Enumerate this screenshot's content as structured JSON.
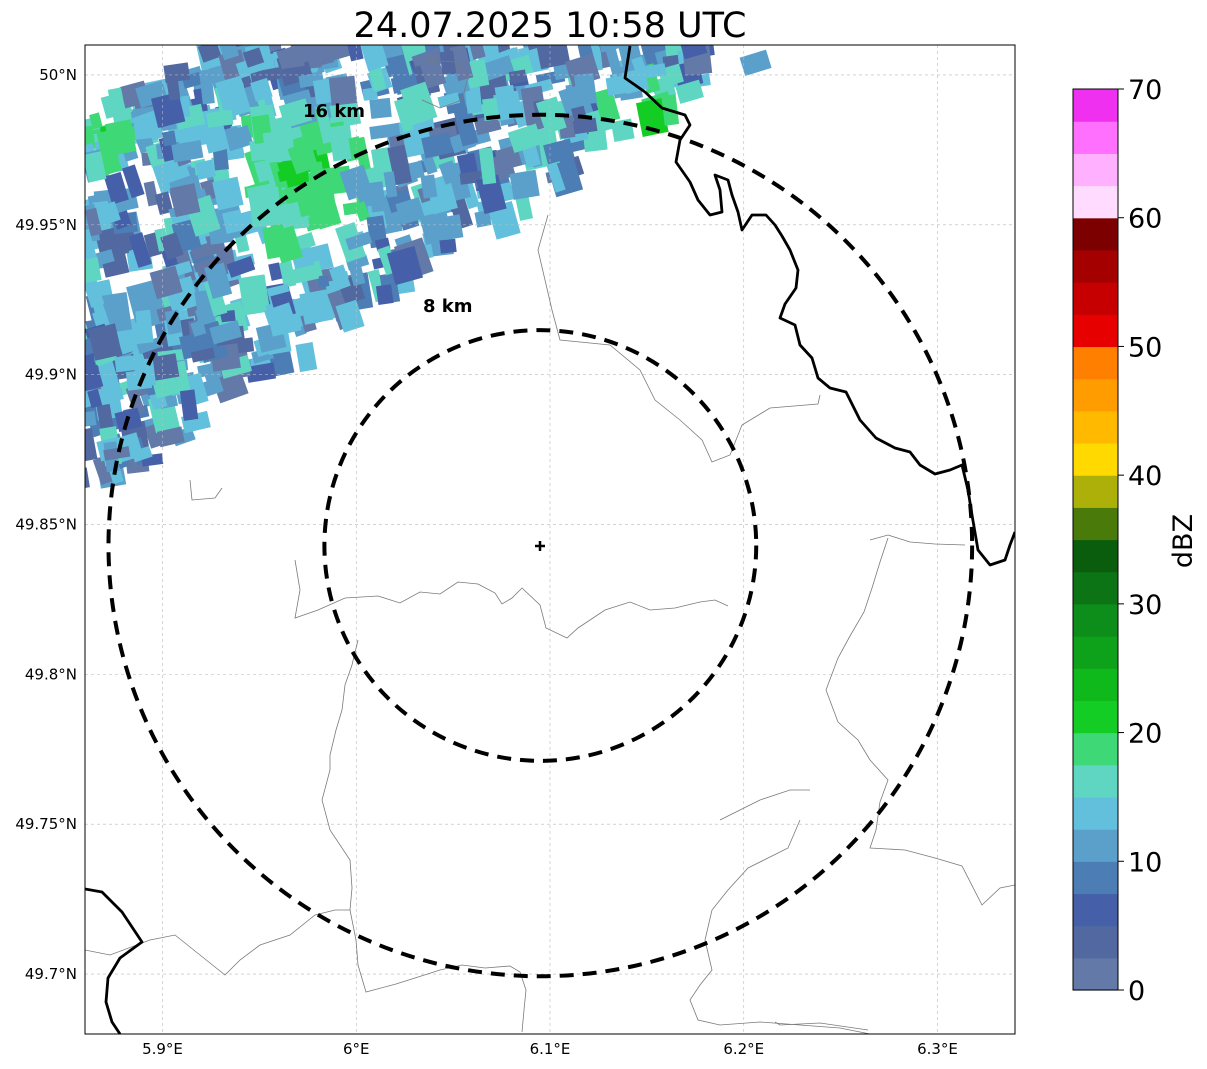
{
  "title": "24.07.2025 10:58 UTC",
  "map": {
    "x_ticks": [
      {
        "value": 5.9,
        "label": "5.9°E"
      },
      {
        "value": 6.0,
        "label": "6°E"
      },
      {
        "value": 6.1,
        "label": "6.1°E"
      },
      {
        "value": 6.2,
        "label": "6.2°E"
      },
      {
        "value": 6.3,
        "label": "6.3°E"
      }
    ],
    "y_ticks": [
      {
        "value": 50.0,
        "label": "50°N"
      },
      {
        "value": 49.95,
        "label": "49.95°N"
      },
      {
        "value": 49.9,
        "label": "49.9°N"
      },
      {
        "value": 49.85,
        "label": "49.85°N"
      },
      {
        "value": 49.8,
        "label": "49.8°N"
      },
      {
        "value": 49.75,
        "label": "49.75°N"
      },
      {
        "value": 49.7,
        "label": "49.7°N"
      }
    ],
    "lon_range": [
      5.86,
      6.34
    ],
    "lat_range": [
      49.68,
      50.01
    ],
    "radar_center": {
      "lon": 6.095,
      "lat": 49.843
    },
    "range_rings": [
      {
        "radius_km": 8,
        "label": "8 km"
      },
      {
        "radius_km": 16,
        "label": "16 km"
      }
    ],
    "grid": true
  },
  "colorbar": {
    "label": "dBZ",
    "min": 0,
    "max": 70,
    "ticks": [
      {
        "value": 0,
        "label": "0"
      },
      {
        "value": 10,
        "label": "10"
      },
      {
        "value": 20,
        "label": "20"
      },
      {
        "value": 30,
        "label": "30"
      },
      {
        "value": 40,
        "label": "40"
      },
      {
        "value": 50,
        "label": "50"
      },
      {
        "value": 60,
        "label": "60"
      },
      {
        "value": 70,
        "label": "70"
      }
    ],
    "colors": [
      "#6379a8",
      "#5169a0",
      "#4560a8",
      "#4d7db5",
      "#5aa0cb",
      "#63c0dc",
      "#5fd6c2",
      "#3fd876",
      "#13cd24",
      "#10b91b",
      "#0ea11a",
      "#0d8d1a",
      "#0c7414",
      "#095d0d",
      "#4a7a0a",
      "#aeb00a",
      "#ffd900",
      "#ffba00",
      "#ff9d00",
      "#ff7f00",
      "#e60000",
      "#c60000",
      "#a50000",
      "#7d0000",
      "#ffdcff",
      "#ffb0ff",
      "#ff70ff",
      "#f030f0"
    ]
  },
  "chart_data": {
    "type": "heatmap",
    "title": "24.07.2025 10:58 UTC",
    "field": "radar reflectivity",
    "units": "dBZ",
    "value_range": [
      0,
      70
    ],
    "xlim": [
      5.86,
      6.34
    ],
    "ylim": [
      49.68,
      50.01
    ],
    "echo_band": "band of 0–25 dBZ echoes oriented SW–NE across the north-west of the map; strongest (about 20–25 dBZ) near 5.97°E 49.98°N and 6.12°E 49.99°N; south-east of the radar is echo-free"
  }
}
